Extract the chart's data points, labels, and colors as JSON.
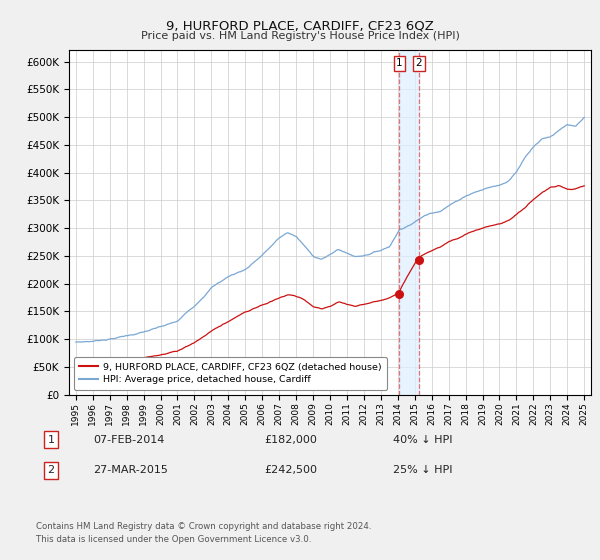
{
  "title": "9, HURFORD PLACE, CARDIFF, CF23 6QZ",
  "subtitle": "Price paid vs. HM Land Registry's House Price Index (HPI)",
  "ylim": [
    0,
    620000
  ],
  "yticks": [
    0,
    50000,
    100000,
    150000,
    200000,
    250000,
    300000,
    350000,
    400000,
    450000,
    500000,
    550000,
    600000
  ],
  "xlim_start": 1994.6,
  "xlim_end": 2025.4,
  "hpi_color": "#7aa8d4",
  "price_color": "#cc1111",
  "dashed_line_color": "#dd5555",
  "band_color": "#ddeeff",
  "sale1_date": "07-FEB-2014",
  "sale1_price": 182000,
  "sale1_label": "40% ↓ HPI",
  "sale1_year": 2014.1,
  "sale2_date": "27-MAR-2015",
  "sale2_price": 242500,
  "sale2_label": "25% ↓ HPI",
  "sale2_year": 2015.25,
  "footer": "Contains HM Land Registry data © Crown copyright and database right 2024.\nThis data is licensed under the Open Government Licence v3.0.",
  "background_color": "#f0f0f0",
  "plot_background": "#ffffff"
}
